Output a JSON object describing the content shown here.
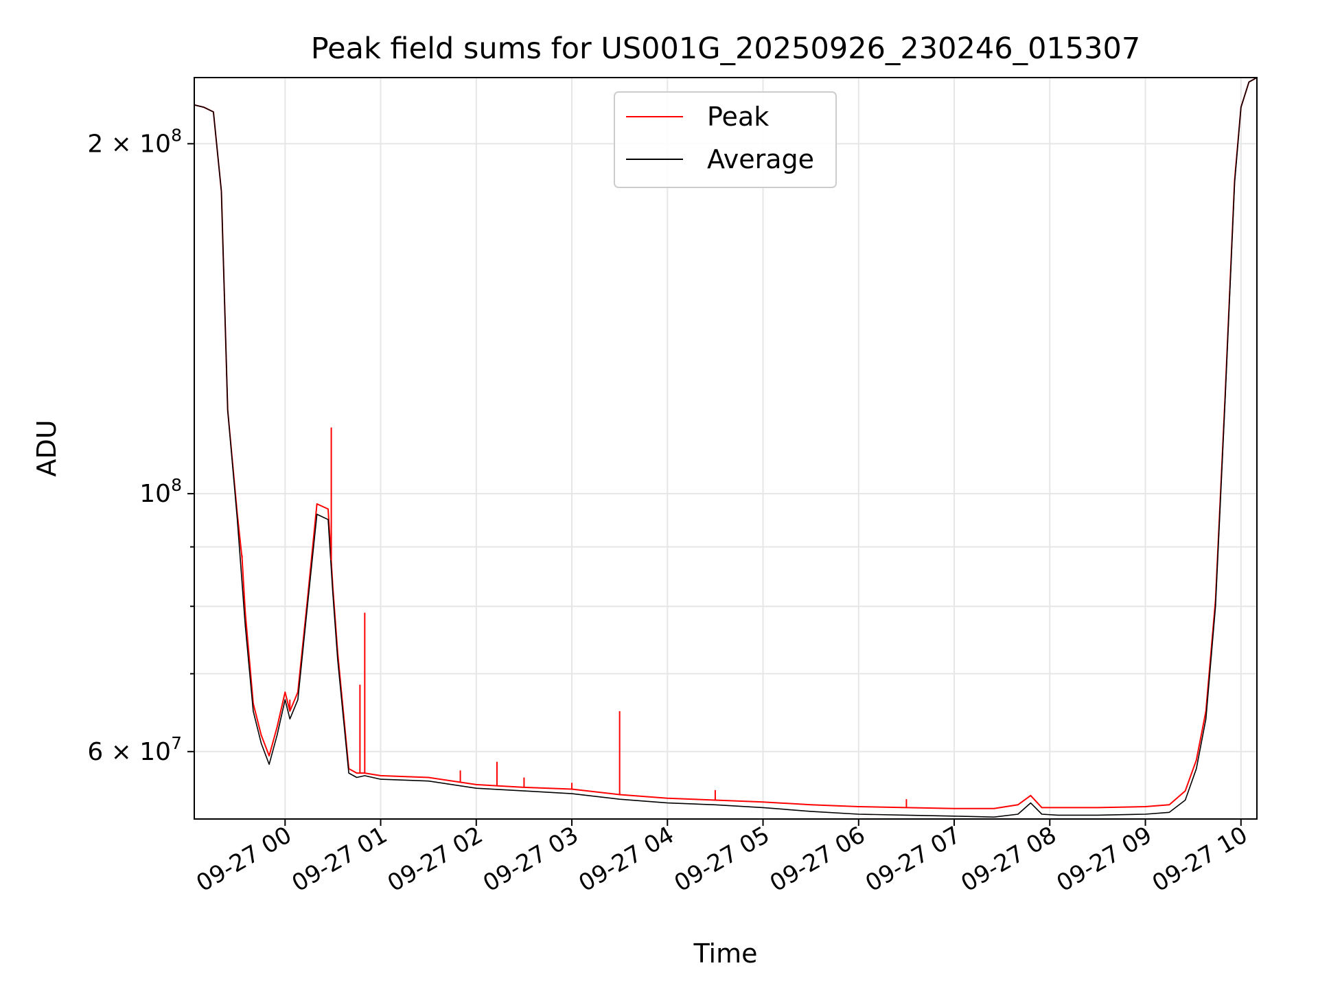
{
  "chart_data": {
    "type": "line",
    "title": "Peak field sums for US001G_20250926_230246_015307",
    "xlabel": "Time",
    "ylabel": "ADU",
    "x_axis": {
      "kind": "datetime",
      "range": [
        "2025-09-26T23:03:00",
        "2025-09-27T10:10:00"
      ],
      "tick_labels": [
        "09-27 00",
        "09-27 01",
        "09-27 02",
        "09-27 03",
        "09-27 04",
        "09-27 05",
        "09-27 06",
        "09-27 07",
        "09-27 08",
        "09-27 09",
        "09-27 10"
      ],
      "tick_values": [
        "2025-09-27T00:00:00",
        "2025-09-27T01:00:00",
        "2025-09-27T02:00:00",
        "2025-09-27T03:00:00",
        "2025-09-27T04:00:00",
        "2025-09-27T05:00:00",
        "2025-09-27T06:00:00",
        "2025-09-27T07:00:00",
        "2025-09-27T08:00:00",
        "2025-09-27T09:00:00",
        "2025-09-27T10:00:00"
      ],
      "tick_label_rotation_deg": 30
    },
    "y_axis": {
      "scale": "log",
      "range": [
        52500000,
        228000000
      ],
      "major_tick_values": [
        60000000,
        100000000,
        200000000
      ],
      "major_tick_labels": [
        {
          "value": 60000000,
          "mantissa": "6",
          "base": "10",
          "exponent": "7"
        },
        {
          "value": 100000000,
          "mantissa": "",
          "base": "10",
          "exponent": "8"
        },
        {
          "value": 200000000,
          "mantissa": "2",
          "base": "10",
          "exponent": "8"
        }
      ],
      "minor_tick_values": [
        70000000,
        80000000,
        90000000
      ]
    },
    "grid": true,
    "legend": {
      "placement": "upper-center",
      "entries": [
        {
          "label": "Peak",
          "color": "#ff0000"
        },
        {
          "label": "Average",
          "color": "#000000"
        }
      ]
    },
    "series": [
      {
        "name": "Average",
        "color": "#000000",
        "x": [
          "2025-09-26T23:03:00",
          "2025-09-26T23:09:00",
          "2025-09-26T23:15:00",
          "2025-09-26T23:20:00",
          "2025-09-26T23:24:00",
          "2025-09-26T23:30:00",
          "2025-09-26T23:35:00",
          "2025-09-26T23:40:00",
          "2025-09-26T23:45:00",
          "2025-09-26T23:50:00",
          "2025-09-26T23:55:00",
          "2025-09-27T00:00:00",
          "2025-09-27T00:03:00",
          "2025-09-27T00:08:00",
          "2025-09-27T00:14:00",
          "2025-09-27T00:20:00",
          "2025-09-27T00:27:00",
          "2025-09-27T00:30:00",
          "2025-09-27T00:33:00",
          "2025-09-27T00:40:00",
          "2025-09-27T00:45:00",
          "2025-09-27T00:50:00",
          "2025-09-27T01:00:00",
          "2025-09-27T01:30:00",
          "2025-09-27T02:00:00",
          "2025-09-27T02:30:00",
          "2025-09-27T03:00:00",
          "2025-09-27T03:30:00",
          "2025-09-27T04:00:00",
          "2025-09-27T04:30:00",
          "2025-09-27T05:00:00",
          "2025-09-27T05:30:00",
          "2025-09-27T06:00:00",
          "2025-09-27T06:30:00",
          "2025-09-27T07:00:00",
          "2025-09-27T07:25:00",
          "2025-09-27T07:40:00",
          "2025-09-27T07:48:00",
          "2025-09-27T07:55:00",
          "2025-09-27T08:05:00",
          "2025-09-27T08:30:00",
          "2025-09-27T09:00:00",
          "2025-09-27T09:15:00",
          "2025-09-27T09:25:00",
          "2025-09-27T09:32:00",
          "2025-09-27T09:38:00",
          "2025-09-27T09:44:00",
          "2025-09-27T09:50:00",
          "2025-09-27T09:56:00",
          "2025-09-27T10:00:00",
          "2025-09-27T10:05:00",
          "2025-09-27T10:10:00"
        ],
        "y": [
          216000000,
          215000000,
          213000000,
          182000000,
          118000000,
          95000000,
          77000000,
          65000000,
          61000000,
          58500000,
          62000000,
          66500000,
          64000000,
          66500000,
          80000000,
          96000000,
          95000000,
          82000000,
          72000000,
          57500000,
          57000000,
          57200000,
          56800000,
          56600000,
          55800000,
          55500000,
          55200000,
          54600000,
          54200000,
          54000000,
          53700000,
          53300000,
          53000000,
          52900000,
          52800000,
          52700000,
          53000000,
          54200000,
          53000000,
          52900000,
          52900000,
          53000000,
          53200000,
          54500000,
          58000000,
          64000000,
          80000000,
          120000000,
          185000000,
          215000000,
          226000000,
          228000000
        ]
      },
      {
        "name": "Peak",
        "color": "#ff0000",
        "x": [
          "2025-09-26T23:03:00",
          "2025-09-26T23:09:00",
          "2025-09-26T23:15:00",
          "2025-09-26T23:20:00",
          "2025-09-26T23:24:00",
          "2025-09-26T23:30:00",
          "2025-09-26T23:33:00",
          "2025-09-26T23:35:00",
          "2025-09-26T23:40:00",
          "2025-09-26T23:45:00",
          "2025-09-26T23:50:00",
          "2025-09-26T23:55:00",
          "2025-09-27T00:00:00",
          "2025-09-27T00:03:00",
          "2025-09-27T00:08:00",
          "2025-09-27T00:14:00",
          "2025-09-27T00:20:00",
          "2025-09-27T00:27:00",
          "2025-09-27T00:30:00",
          "2025-09-27T00:33:00",
          "2025-09-27T00:40:00",
          "2025-09-27T00:45:00",
          "2025-09-27T00:50:00",
          "2025-09-27T01:00:00",
          "2025-09-27T01:30:00",
          "2025-09-27T02:00:00",
          "2025-09-27T02:30:00",
          "2025-09-27T03:00:00",
          "2025-09-27T03:30:00",
          "2025-09-27T04:00:00",
          "2025-09-27T04:30:00",
          "2025-09-27T05:00:00",
          "2025-09-27T05:30:00",
          "2025-09-27T06:00:00",
          "2025-09-27T06:30:00",
          "2025-09-27T07:00:00",
          "2025-09-27T07:25:00",
          "2025-09-27T07:40:00",
          "2025-09-27T07:48:00",
          "2025-09-27T07:55:00",
          "2025-09-27T08:05:00",
          "2025-09-27T08:30:00",
          "2025-09-27T09:00:00",
          "2025-09-27T09:15:00",
          "2025-09-27T09:25:00",
          "2025-09-27T09:32:00",
          "2025-09-27T09:38:00",
          "2025-09-27T09:44:00",
          "2025-09-27T09:50:00",
          "2025-09-27T09:56:00",
          "2025-09-27T10:00:00",
          "2025-09-27T10:05:00",
          "2025-09-27T10:10:00"
        ],
        "y": [
          216000000,
          215000000,
          213000000,
          182000000,
          118000000,
          96000000,
          88000000,
          79000000,
          66000000,
          62000000,
          59500000,
          63000000,
          67500000,
          65000000,
          67500000,
          81000000,
          98000000,
          97000000,
          83000000,
          73000000,
          58000000,
          57500000,
          57500000,
          57200000,
          57000000,
          56200000,
          55900000,
          55700000,
          55100000,
          54700000,
          54500000,
          54300000,
          54000000,
          53800000,
          53700000,
          53600000,
          53600000,
          54000000,
          55000000,
          53700000,
          53700000,
          53700000,
          53800000,
          54000000,
          55500000,
          59000000,
          65000000,
          81000000,
          121000000,
          186000000,
          215000000,
          226000000,
          228000000
        ]
      }
    ],
    "peak_spikes": [
      {
        "x": "2025-09-26T23:33:00",
        "y": 88500000
      },
      {
        "x": "2025-09-27T00:03:00",
        "y": 66500000
      },
      {
        "x": "2025-09-27T00:29:00",
        "y": 114000000
      },
      {
        "x": "2025-09-27T00:47:00",
        "y": 68500000
      },
      {
        "x": "2025-09-27T00:50:00",
        "y": 79000000
      },
      {
        "x": "2025-09-27T01:50:00",
        "y": 57800000
      },
      {
        "x": "2025-09-27T02:13:00",
        "y": 58800000
      },
      {
        "x": "2025-09-27T02:30:00",
        "y": 57000000
      },
      {
        "x": "2025-09-27T03:00:00",
        "y": 56400000
      },
      {
        "x": "2025-09-27T03:30:00",
        "y": 65000000
      },
      {
        "x": "2025-09-27T04:30:00",
        "y": 55600000
      },
      {
        "x": "2025-09-27T06:30:00",
        "y": 54600000
      }
    ]
  }
}
